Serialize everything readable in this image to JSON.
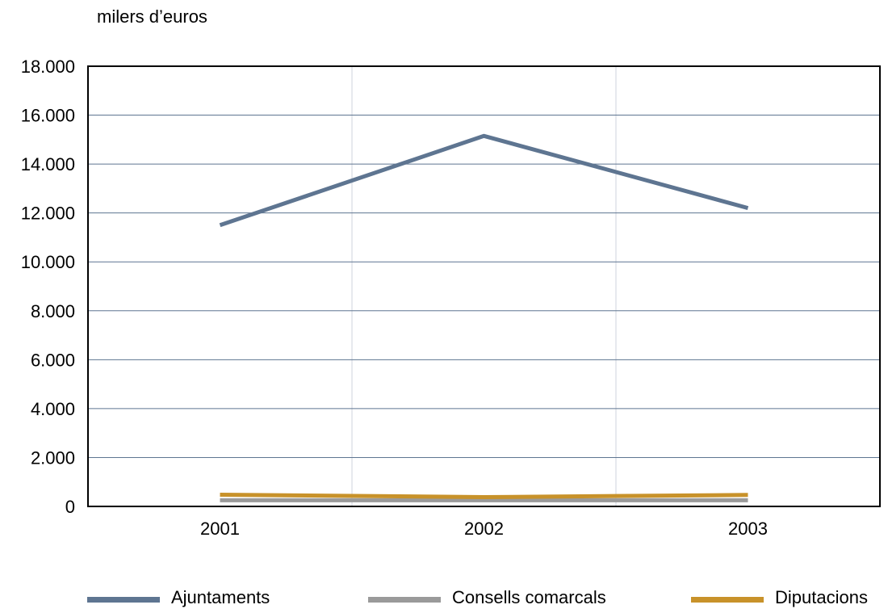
{
  "chart_data": {
    "type": "line",
    "unit_label": "milers d’euros",
    "categories": [
      "2001",
      "2002",
      "2003"
    ],
    "ylim": [
      0,
      18000
    ],
    "yticks": [
      0,
      2000,
      4000,
      6000,
      8000,
      10000,
      12000,
      14000,
      16000,
      18000
    ],
    "ytick_labels": [
      "0",
      "2.000",
      "4.000",
      "6.000",
      "8.000",
      "10.000",
      "12.000",
      "14.000",
      "16.000",
      "18.000"
    ],
    "grid": true,
    "legend_position": "bottom",
    "series": [
      {
        "name": "Ajuntaments",
        "color": "#5e7591",
        "values": [
          11500,
          15150,
          12200
        ]
      },
      {
        "name": "Consells comarcals",
        "color": "#9a9a9a",
        "values": [
          250,
          250,
          250
        ]
      },
      {
        "name": "Diputacions",
        "color": "#c8922a",
        "values": [
          480,
          380,
          470
        ]
      }
    ]
  }
}
